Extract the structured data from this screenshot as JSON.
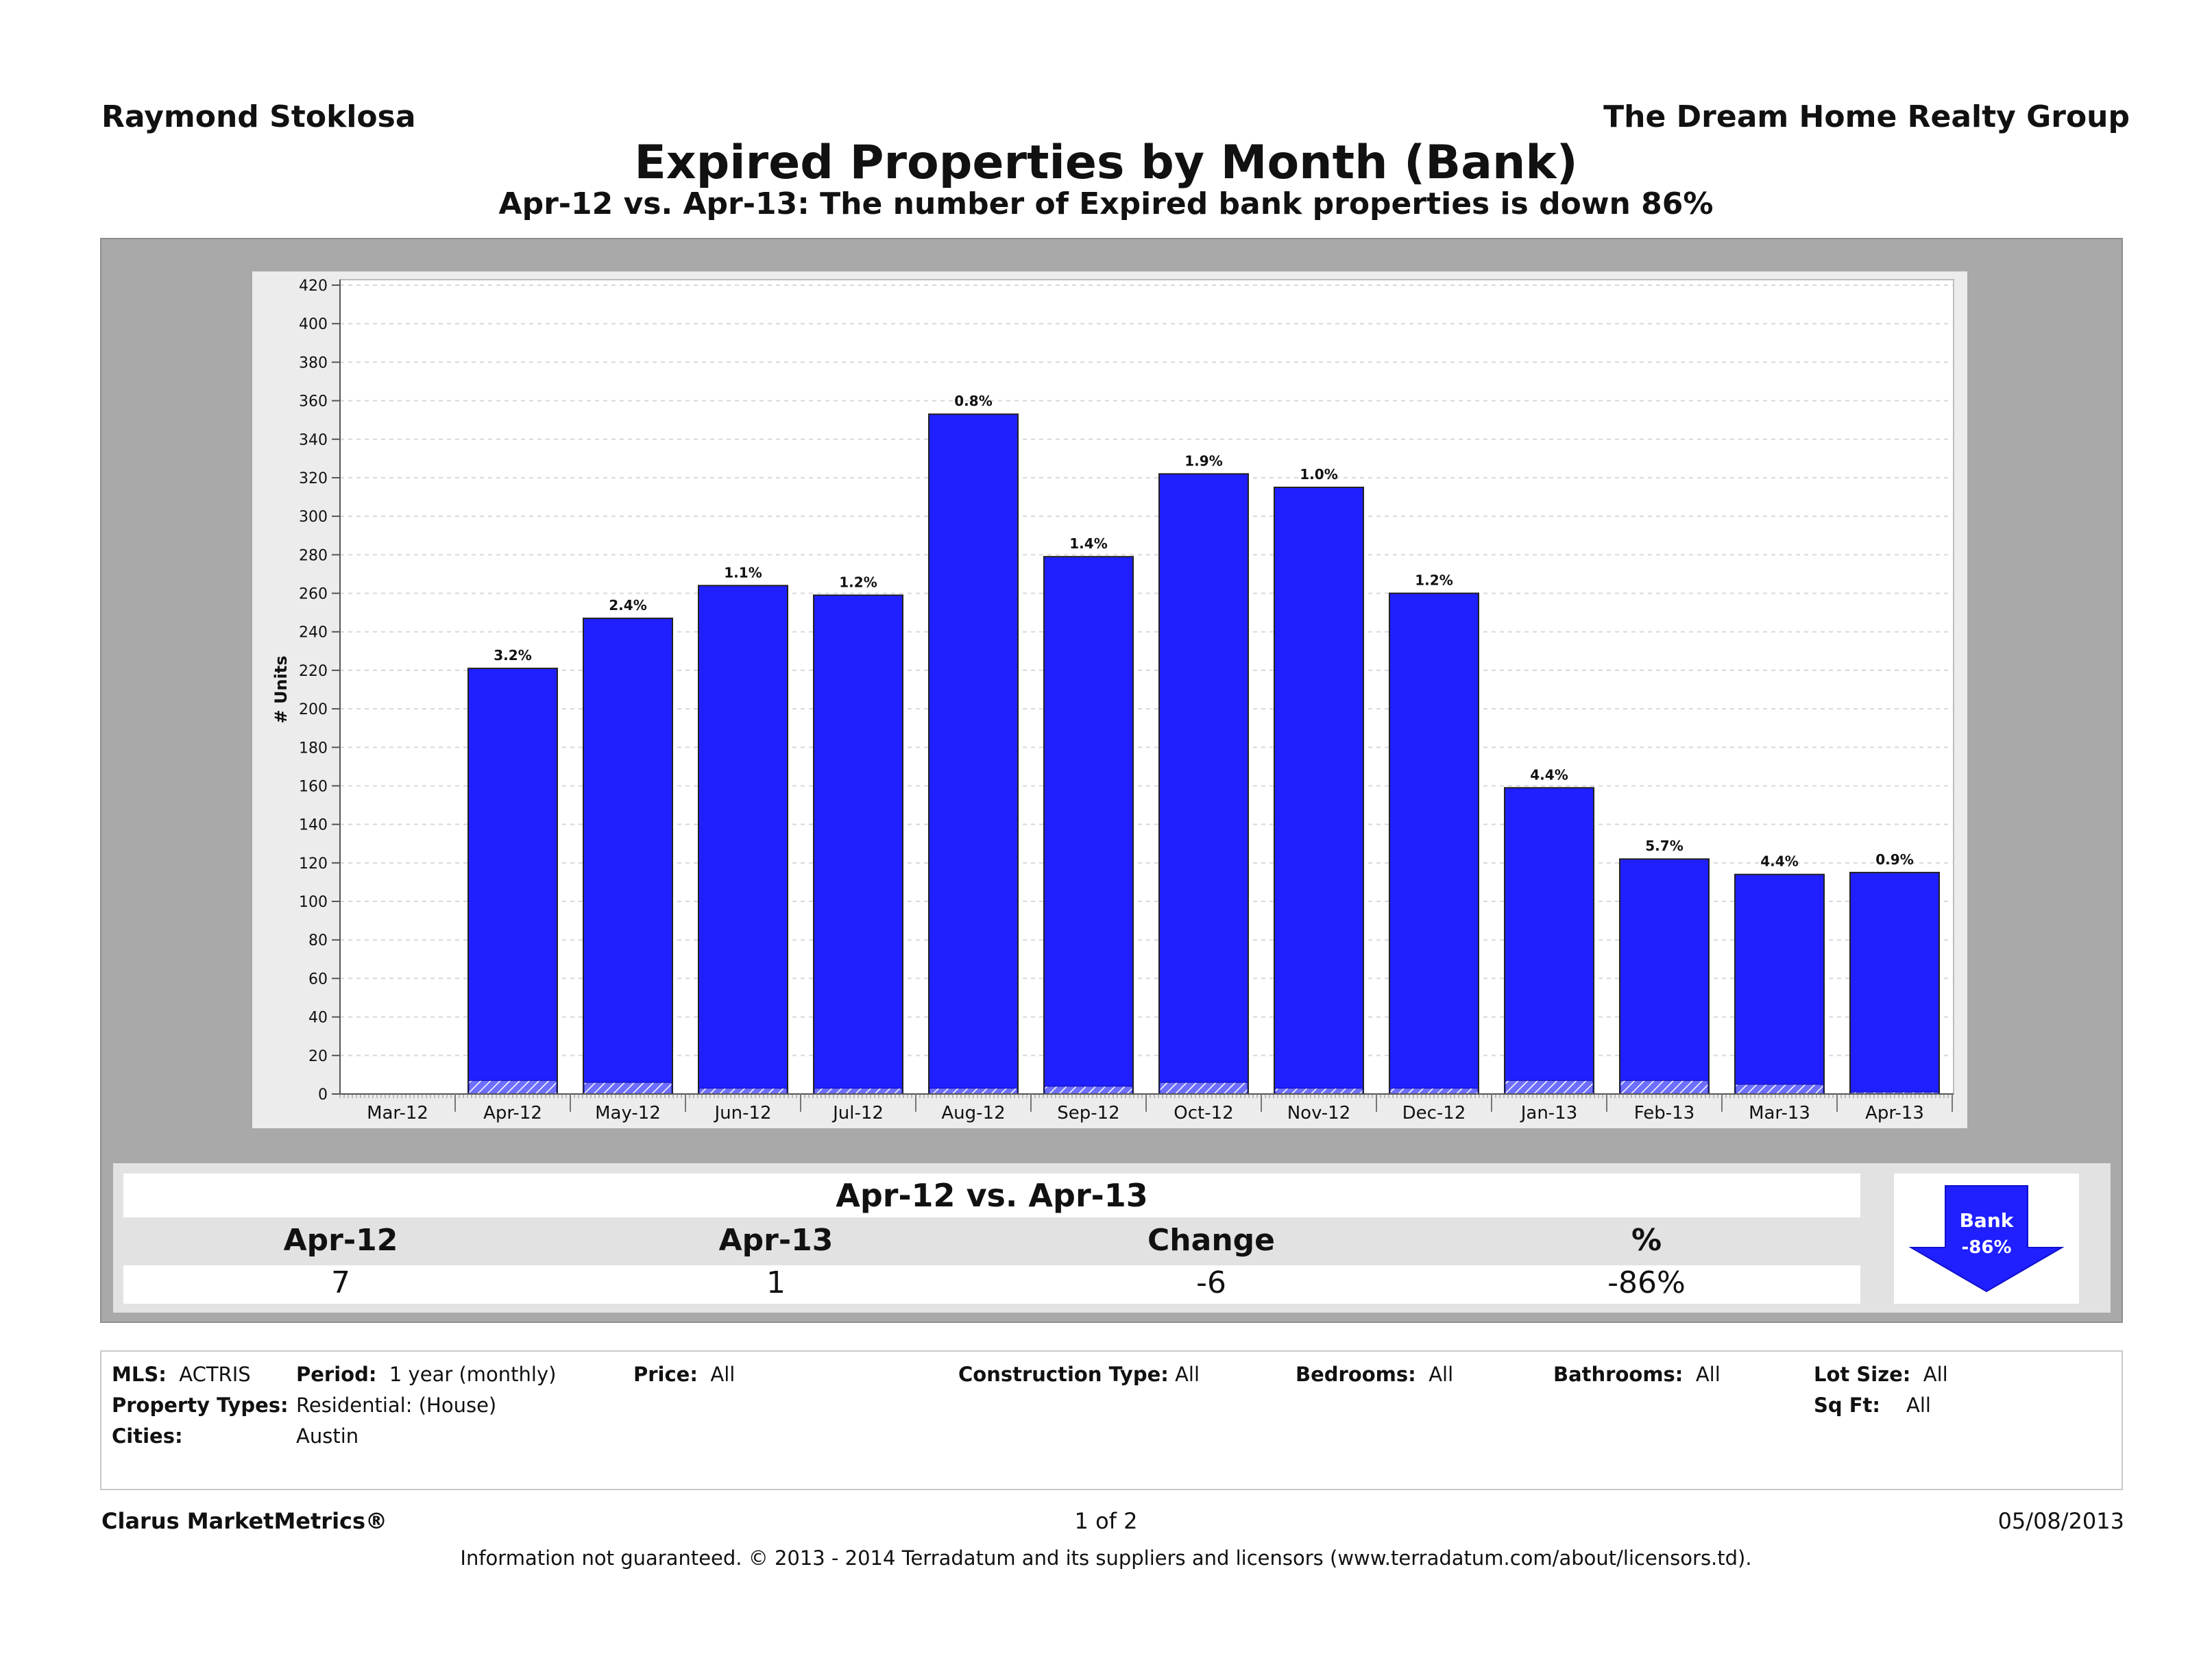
{
  "header": {
    "agent": "Raymond Stoklosa",
    "company": "The Dream Home Realty Group",
    "title": "Expired Properties by Month (Bank)",
    "subtitle": "Apr-12 vs. Apr-13: The number of Expired bank properties is down 86%"
  },
  "chart_data": {
    "type": "bar",
    "title": "Expired Properties by Month (Bank)",
    "ylabel": "# Units",
    "xlabel": "",
    "ylim": [
      0,
      420
    ],
    "ytick_step": 20,
    "grid": true,
    "categories": [
      "Mar-12",
      "Apr-12",
      "May-12",
      "Jun-12",
      "Jul-12",
      "Aug-12",
      "Sep-12",
      "Oct-12",
      "Nov-12",
      "Dec-12",
      "Jan-13",
      "Feb-13",
      "Mar-13",
      "Apr-13"
    ],
    "total_values": [
      null,
      221,
      247,
      264,
      259,
      353,
      279,
      322,
      315,
      260,
      159,
      122,
      114,
      115
    ],
    "series": [
      {
        "name": "Bank",
        "values": [
          null,
          7,
          6,
          3,
          3,
          3,
          4,
          6,
          3,
          3,
          7,
          7,
          5,
          1
        ]
      }
    ],
    "bar_labels": [
      "",
      "3.2%",
      "2.4%",
      "1.1%",
      "1.2%",
      "0.8%",
      "1.4%",
      "1.9%",
      "1.0%",
      "1.2%",
      "4.4%",
      "5.7%",
      "4.4%",
      "0.9%"
    ],
    "colors": {
      "bar": "#1f1fff",
      "bank": "#5a5aff",
      "grid": "#d8d8d8"
    }
  },
  "summary": {
    "title": "Apr-12 vs. Apr-13",
    "headers": [
      "Apr-12",
      "Apr-13",
      "Change",
      "%"
    ],
    "values": [
      "7",
      "1",
      "-6",
      "-86%"
    ],
    "badge_label": "Bank",
    "badge_value": "-86%"
  },
  "filters": {
    "mls_label": "MLS:",
    "mls_value": "ACTRIS",
    "period_label": "Period:",
    "period_value": "1 year (monthly)",
    "price_label": "Price:",
    "price_value": "All",
    "construction_label": "Construction Type:",
    "construction_value": "All",
    "bedrooms_label": "Bedrooms:",
    "bedrooms_value": "All",
    "bathrooms_label": "Bathrooms:",
    "bathrooms_value": "All",
    "lot_label": "Lot Size:",
    "lot_value": "All",
    "ptypes_label": "Property Types:",
    "ptypes_value": "Residential: (House)",
    "sqft_label": "Sq Ft:",
    "sqft_value": "All",
    "cities_label": "Cities:",
    "cities_value": "Austin"
  },
  "footer": {
    "brand": "Clarus MarketMetrics®",
    "page": "1 of 2",
    "date": "05/08/2013",
    "disclaimer": "Information not guaranteed.  © 2013 - 2014 Terradatum and its suppliers and licensors (www.terradatum.com/about/licensors.td)."
  }
}
